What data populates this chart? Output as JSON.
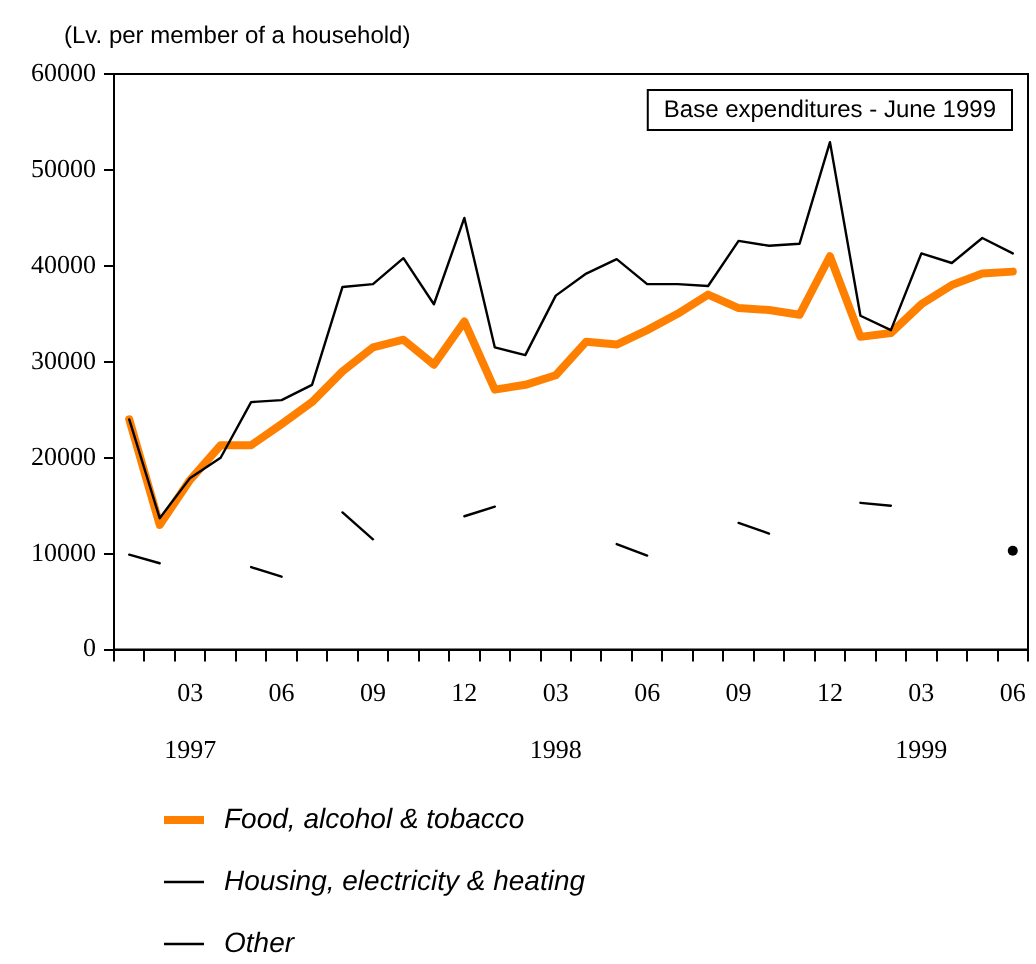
{
  "chart_data": {
    "type": "line",
    "ylabel": "(Lv. per member of a household)",
    "categories": [
      null,
      null,
      "03\n1997",
      null,
      null,
      "06",
      null,
      null,
      "09",
      null,
      null,
      "12",
      null,
      null,
      "03\n1998",
      null,
      null,
      "06",
      null,
      null,
      "09",
      null,
      null,
      "12",
      null,
      null,
      "03\n1999",
      null,
      null,
      "06"
    ],
    "series": [
      {
        "name": "Food, alcohol & tobacco",
        "color": "#ff8000",
        "values": [
          24000,
          13000,
          17700,
          21300,
          21300,
          23500,
          25800,
          29000,
          31500,
          32300,
          29700,
          34200,
          27100,
          27600,
          28600,
          32100,
          31800,
          33300,
          35000,
          37000,
          35600,
          35400,
          34900,
          41000,
          32600,
          33000,
          36000,
          38000,
          39200,
          39400
        ]
      },
      {
        "name": "Housing, electricity & heating",
        "color": "#000000",
        "values": [
          9900,
          9000,
          null,
          null,
          8600,
          7600,
          null,
          14300,
          11500,
          null,
          null,
          13900,
          14900,
          null,
          null,
          null,
          11000,
          9800,
          null,
          null,
          13200,
          12100,
          null,
          null,
          15300,
          15000,
          null,
          null,
          null,
          10300
        ]
      },
      {
        "name": "Other",
        "color": "#000000",
        "values": [
          24000,
          13700,
          17900,
          20000,
          25800,
          26000,
          27600,
          37800,
          38100,
          40800,
          36000,
          45000,
          31500,
          30700,
          36900,
          39200,
          40700,
          38100,
          38100,
          37900,
          42600,
          42100,
          42300,
          52900,
          34800,
          33300,
          41300,
          40300,
          42900,
          41300
        ]
      }
    ],
    "ylim": [
      0,
      60000
    ],
    "yticks": [
      0,
      10000,
      20000,
      30000,
      40000,
      50000,
      60000
    ],
    "annotations": [
      "Base expenditures - June 1999"
    ],
    "grid": false,
    "legend": "bottom",
    "marker": "none",
    "line_style": "solid"
  }
}
